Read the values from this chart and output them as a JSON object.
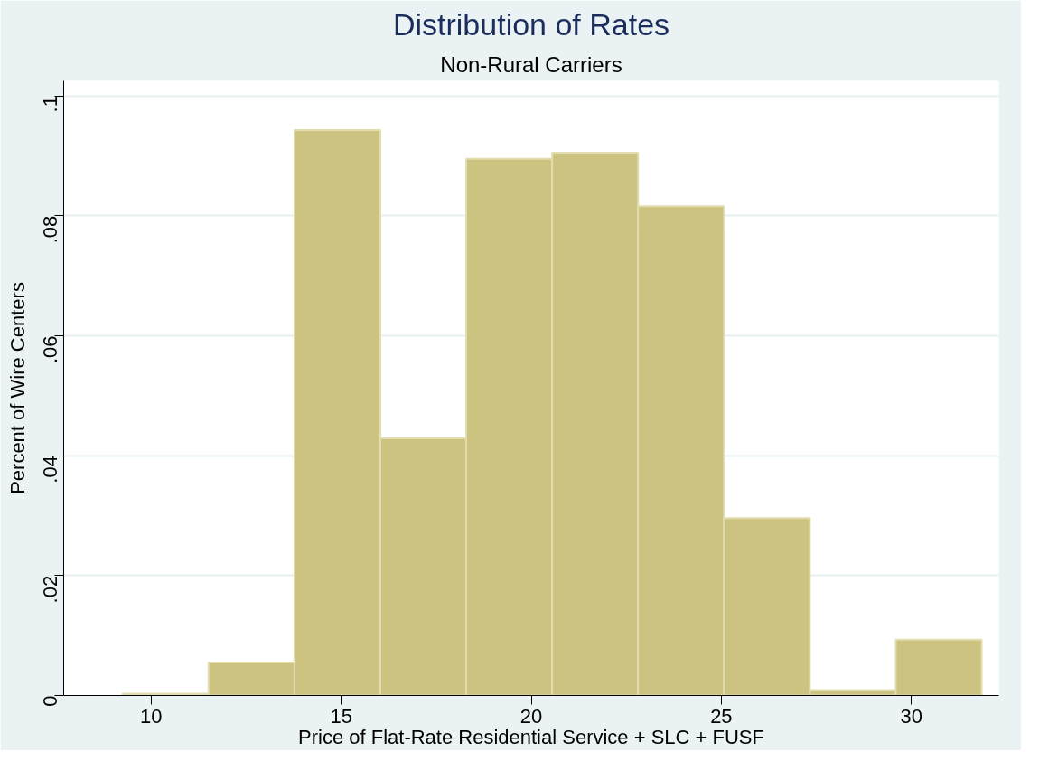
{
  "chart_data": {
    "type": "histogram",
    "title": "Distribution of Rates",
    "subtitle": "Non-Rural Carriers",
    "xlabel": "Price of Flat-Rate Residential Service + SLC + FUSF",
    "ylabel": "Percent of Wire Centers",
    "bins": [
      9.25,
      11.51,
      13.77,
      16.03,
      18.29,
      20.55,
      22.81,
      25.07,
      27.33,
      29.59,
      31.85
    ],
    "values": [
      0.0003,
      0.0055,
      0.0943,
      0.0429,
      0.0895,
      0.0905,
      0.0816,
      0.0296,
      0.0009,
      0.0093
    ],
    "color": "#cbc37f",
    "xlim": [
      7.7,
      32.3
    ],
    "xticks": [
      10,
      15,
      20,
      25,
      30
    ],
    "ylim": [
      0,
      0.1025
    ],
    "yticks": [
      {
        "value": 0,
        "label": "0"
      },
      {
        "value": 0.02,
        "label": ".02"
      },
      {
        "value": 0.04,
        "label": ".04"
      },
      {
        "value": 0.06,
        "label": ".06"
      },
      {
        "value": 0.08,
        "label": ".08"
      },
      {
        "value": 0.1,
        "label": ".1"
      }
    ],
    "grid": "y"
  }
}
